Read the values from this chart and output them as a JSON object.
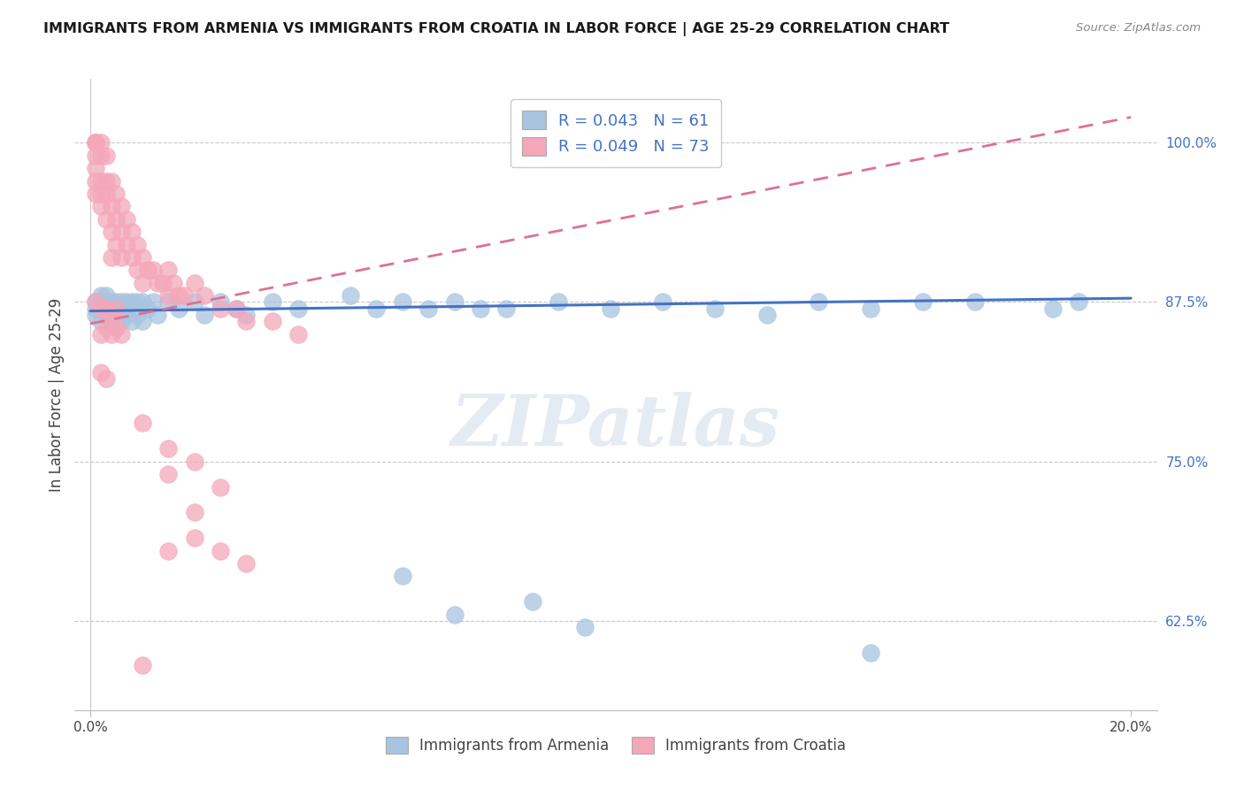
{
  "title": "IMMIGRANTS FROM ARMENIA VS IMMIGRANTS FROM CROATIA IN LABOR FORCE | AGE 25-29 CORRELATION CHART",
  "source": "Source: ZipAtlas.com",
  "ylabel": "In Labor Force | Age 25-29",
  "yticks": [
    0.625,
    0.75,
    0.875,
    1.0
  ],
  "ytick_labels": [
    "62.5%",
    "75.0%",
    "87.5%",
    "100.0%"
  ],
  "armenia_color": "#a8c4e0",
  "croatia_color": "#f4a7b9",
  "armenia_line_color": "#4472c4",
  "croatia_line_color": "#e07090",
  "xlim": [
    0.0,
    0.2
  ],
  "ylim": [
    0.555,
    1.05
  ],
  "armenia_line_x0": 0.0,
  "armenia_line_y0": 0.868,
  "armenia_line_x1": 0.2,
  "armenia_line_y1": 0.878,
  "croatia_line_x0": 0.0,
  "croatia_line_y0": 0.858,
  "croatia_line_x1": 0.2,
  "croatia_line_y1": 1.02,
  "arm_x": [
    0.001,
    0.001,
    0.001,
    0.002,
    0.002,
    0.002,
    0.003,
    0.003,
    0.003,
    0.004,
    0.004,
    0.004,
    0.005,
    0.005,
    0.005,
    0.006,
    0.006,
    0.006,
    0.007,
    0.007,
    0.008,
    0.008,
    0.009,
    0.009,
    0.01,
    0.01,
    0.011,
    0.012,
    0.013,
    0.015,
    0.017,
    0.02,
    0.022,
    0.025,
    0.028,
    0.03,
    0.035,
    0.04,
    0.05,
    0.055,
    0.06,
    0.065,
    0.07,
    0.075,
    0.08,
    0.09,
    0.1,
    0.11,
    0.12,
    0.13,
    0.14,
    0.15,
    0.16,
    0.17,
    0.185,
    0.06,
    0.07,
    0.085,
    0.095,
    0.15,
    0.19
  ],
  "arm_y": [
    0.875,
    0.87,
    0.865,
    0.88,
    0.87,
    0.86,
    0.88,
    0.875,
    0.865,
    0.875,
    0.87,
    0.86,
    0.875,
    0.87,
    0.855,
    0.875,
    0.87,
    0.86,
    0.875,
    0.865,
    0.875,
    0.86,
    0.875,
    0.865,
    0.875,
    0.86,
    0.87,
    0.875,
    0.865,
    0.875,
    0.87,
    0.875,
    0.865,
    0.875,
    0.87,
    0.865,
    0.875,
    0.87,
    0.88,
    0.87,
    0.875,
    0.87,
    0.875,
    0.87,
    0.87,
    0.875,
    0.87,
    0.875,
    0.87,
    0.865,
    0.875,
    0.87,
    0.875,
    0.875,
    0.87,
    0.66,
    0.63,
    0.64,
    0.62,
    0.6,
    0.875
  ],
  "cro_x": [
    0.001,
    0.001,
    0.001,
    0.001,
    0.001,
    0.001,
    0.001,
    0.002,
    0.002,
    0.002,
    0.002,
    0.002,
    0.003,
    0.003,
    0.003,
    0.003,
    0.004,
    0.004,
    0.004,
    0.004,
    0.005,
    0.005,
    0.005,
    0.006,
    0.006,
    0.006,
    0.007,
    0.007,
    0.008,
    0.008,
    0.009,
    0.009,
    0.01,
    0.01,
    0.011,
    0.012,
    0.013,
    0.014,
    0.015,
    0.015,
    0.016,
    0.017,
    0.018,
    0.02,
    0.022,
    0.025,
    0.028,
    0.03,
    0.035,
    0.04,
    0.001,
    0.002,
    0.003,
    0.004,
    0.005,
    0.002,
    0.003,
    0.004,
    0.005,
    0.006,
    0.002,
    0.003,
    0.01,
    0.015,
    0.015,
    0.02,
    0.025,
    0.02,
    0.02,
    0.015,
    0.025,
    0.03,
    0.01
  ],
  "cro_y": [
    1.0,
    1.0,
    1.0,
    0.99,
    0.98,
    0.97,
    0.96,
    1.0,
    0.99,
    0.97,
    0.96,
    0.95,
    0.99,
    0.97,
    0.96,
    0.94,
    0.97,
    0.95,
    0.93,
    0.91,
    0.96,
    0.94,
    0.92,
    0.95,
    0.93,
    0.91,
    0.94,
    0.92,
    0.93,
    0.91,
    0.92,
    0.9,
    0.91,
    0.89,
    0.9,
    0.9,
    0.89,
    0.89,
    0.9,
    0.88,
    0.89,
    0.88,
    0.88,
    0.89,
    0.88,
    0.87,
    0.87,
    0.86,
    0.86,
    0.85,
    0.875,
    0.87,
    0.87,
    0.865,
    0.87,
    0.85,
    0.855,
    0.85,
    0.855,
    0.85,
    0.82,
    0.815,
    0.78,
    0.76,
    0.74,
    0.75,
    0.73,
    0.71,
    0.69,
    0.68,
    0.68,
    0.67,
    0.59
  ]
}
